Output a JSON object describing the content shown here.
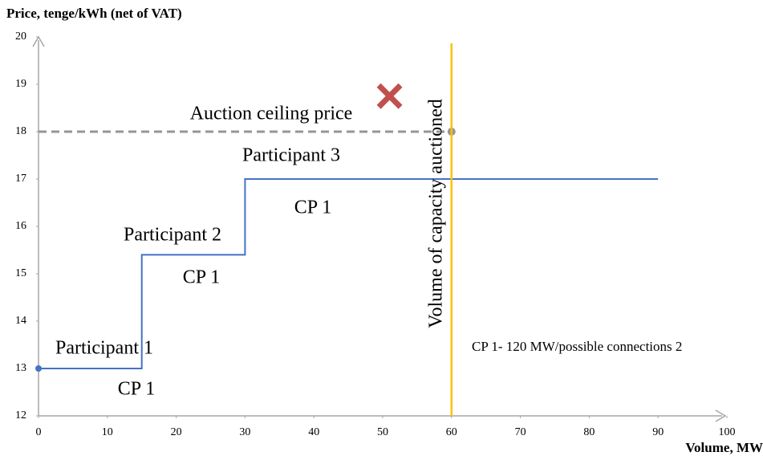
{
  "chart_data": {
    "type": "line",
    "y_axis_label": "Price, tenge/kWh (net of VAT)",
    "x_axis_label": "Volume, MW",
    "xlim": [
      0,
      100
    ],
    "xticks": [
      0,
      10,
      20,
      30,
      40,
      50,
      60,
      70,
      80,
      90,
      100
    ],
    "ylim": [
      12,
      20
    ],
    "yticks": [
      12,
      13,
      14,
      15,
      16,
      17,
      18,
      19,
      20
    ],
    "series": [
      {
        "color": "#4472c4",
        "x": [
          0,
          15,
          15,
          30,
          30,
          90
        ],
        "values": [
          13,
          13,
          15.4,
          15.4,
          17,
          17
        ]
      }
    ],
    "ceiling": {
      "label": "Auction ceiling price",
      "value": 18,
      "x": [
        0,
        60
      ],
      "color": "#969696"
    },
    "capacity": {
      "label": "Volume of capacity auctioned",
      "x": 60,
      "color": "#ffc000"
    },
    "rejected_marker": {
      "x": 51,
      "y": 18.75,
      "color": "#c0504d"
    },
    "annotations": [
      "Participant 3",
      "CP 1",
      "Participant 2",
      "CP 1",
      "Participant 1",
      "CP 1",
      "CP 1- 120 MW/possible connections 2"
    ]
  }
}
